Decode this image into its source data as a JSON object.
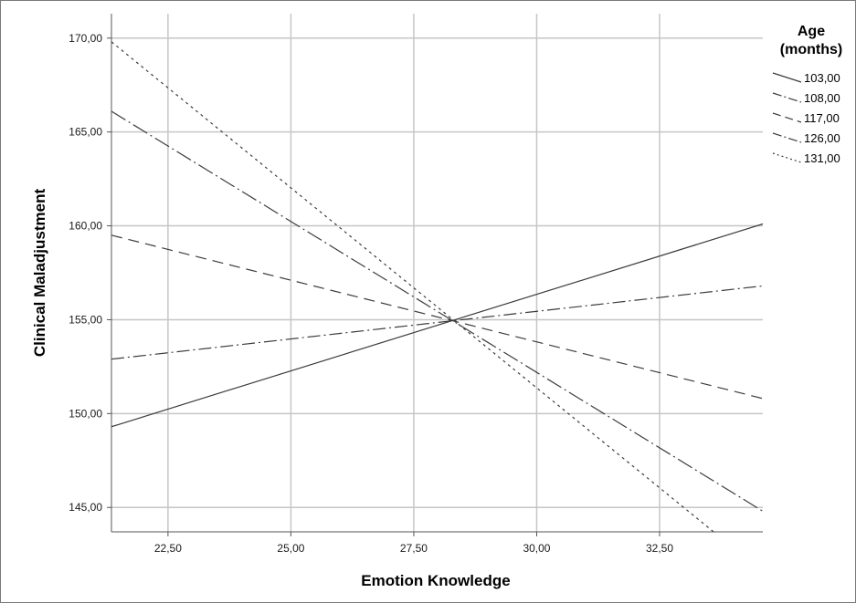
{
  "chart_data": {
    "type": "line",
    "xlabel": "Emotion Knowledge",
    "ylabel": "Clinical Maladjustment",
    "xlim": [
      21.35,
      34.6
    ],
    "ylim": [
      143.7,
      171.3
    ],
    "x_ticks": [
      22.5,
      25.0,
      27.5,
      30.0,
      32.5
    ],
    "x_tick_labels": [
      "22,50",
      "25,00",
      "27,50",
      "30,00",
      "32,50"
    ],
    "y_ticks": [
      145,
      150,
      155,
      160,
      165,
      170
    ],
    "y_tick_labels": [
      "145,00",
      "150,00",
      "155,00",
      "160,00",
      "165,00",
      "170,00"
    ],
    "grid": true,
    "legend": {
      "title": [
        "Age",
        "(months)"
      ],
      "position": "right"
    },
    "series": [
      {
        "name": "103,00",
        "style": "solid",
        "points": [
          [
            21.35,
            149.3
          ],
          [
            34.6,
            160.1
          ]
        ]
      },
      {
        "name": "108,00",
        "style": "dashdot",
        "points": [
          [
            21.35,
            152.9
          ],
          [
            34.6,
            156.8
          ]
        ]
      },
      {
        "name": "117,00",
        "style": "dashed",
        "points": [
          [
            21.35,
            159.5
          ],
          [
            34.6,
            150.8
          ]
        ]
      },
      {
        "name": "126,00",
        "style": "longdashdot",
        "points": [
          [
            21.35,
            166.1
          ],
          [
            34.6,
            144.8
          ]
        ]
      },
      {
        "name": "131,00",
        "style": "dotted",
        "points": [
          [
            21.35,
            169.8
          ],
          [
            33.6,
            143.7
          ]
        ]
      }
    ]
  },
  "colors": {
    "line": "#3c3c3c",
    "grid": "#c6c6c6",
    "axis": "#555555"
  }
}
